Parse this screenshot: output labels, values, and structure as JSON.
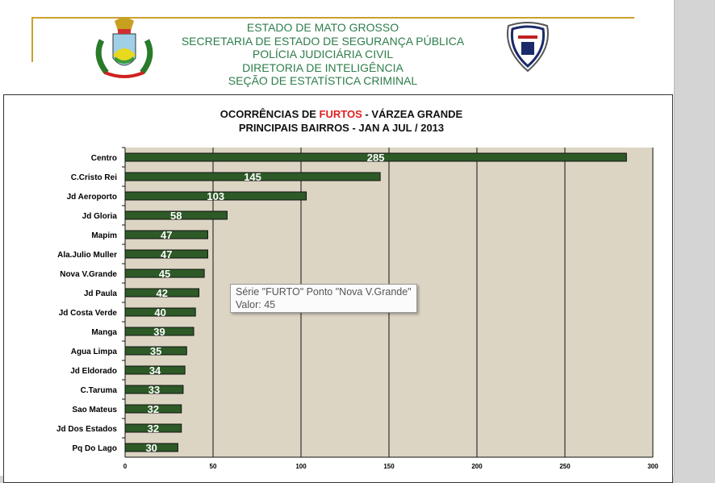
{
  "header": {
    "lines": [
      "ESTADO DE MATO GROSSO",
      "SECRETARIA DE ESTADO DE SEGURANÇA PÚBLICA",
      "POLÍCIA JUDICIÁRIA CIVIL",
      "DIRETORIA DE INTELIGÊNCIA",
      "SEÇÃO DE ESTATÍSTICA CRIMINAL"
    ]
  },
  "chart_data": {
    "type": "bar",
    "orientation": "horizontal",
    "title_part1": "OCORRÊNCIAS DE ",
    "title_highlight": "FURTOS",
    "title_part2": " - VÁRZEA GRANDE",
    "subtitle": "PRINCIPAIS BAIRROS - JAN A JUL / 2013",
    "series_name": "FURTO",
    "categories": [
      "Centro",
      "C.Cristo Rei",
      "Jd Aeroporto",
      "Jd Gloria",
      "Mapim",
      "Ala.Julio Muller",
      "Nova V.Grande",
      "Jd Paula",
      "Jd Costa Verde",
      "Manga",
      "Agua Limpa",
      "Jd Eldorado",
      "C.Taruma",
      "Sao Mateus",
      "Jd Dos Estados",
      "Pq Do Lago"
    ],
    "values": [
      285,
      145,
      103,
      58,
      47,
      47,
      45,
      42,
      40,
      39,
      35,
      34,
      33,
      32,
      32,
      30
    ],
    "xlim": [
      0,
      300
    ],
    "xticks": [
      0,
      50,
      100,
      150,
      200,
      250,
      300
    ],
    "grid": true,
    "bar_color": "#2d5a27",
    "plot_bg": "#ddd5c4",
    "highlight_color": "#e02020"
  },
  "tooltip": {
    "line1": "Série \"FURTO\" Ponto \"Nova V.Grande\"",
    "line2": "Valor: 45"
  }
}
